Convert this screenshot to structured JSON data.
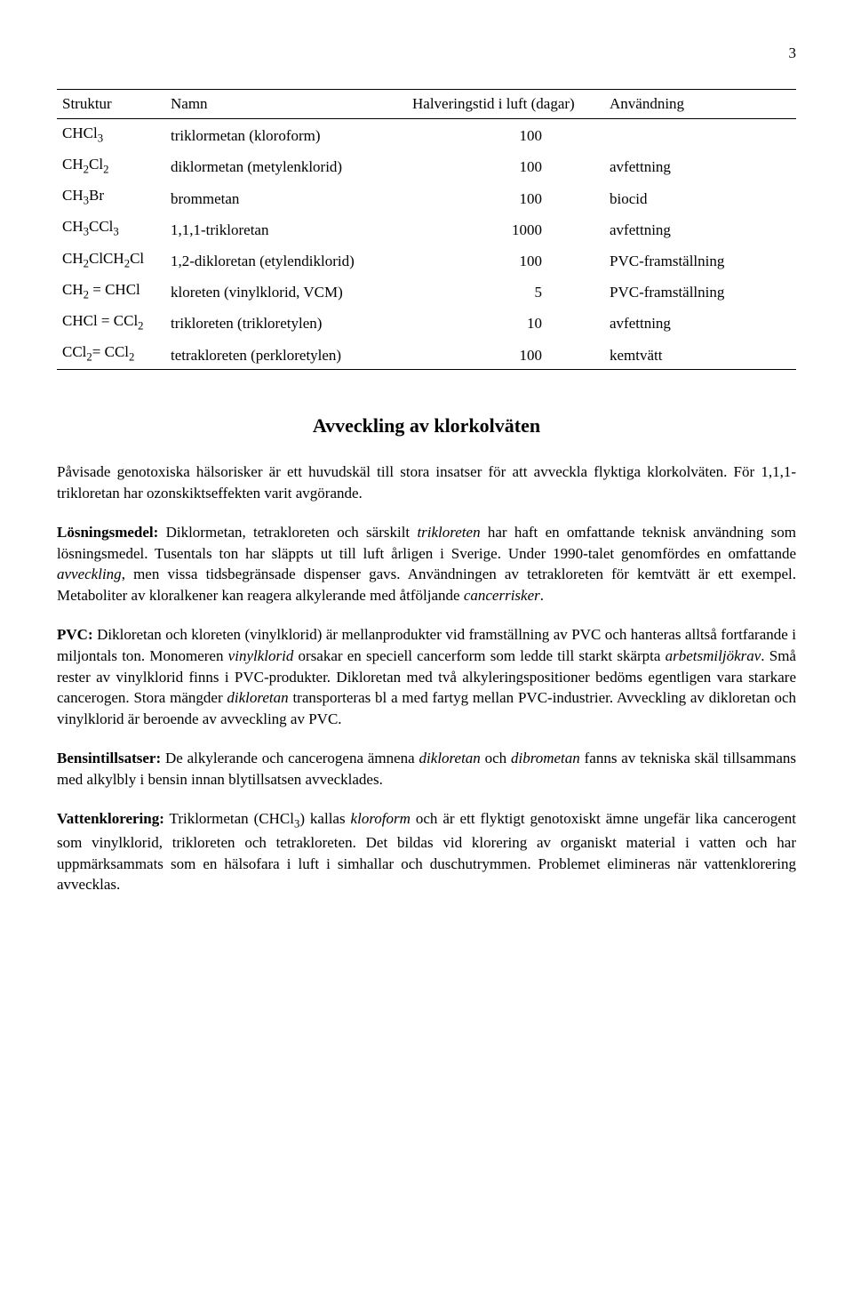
{
  "page_number": "3",
  "table": {
    "headers": [
      "Struktur",
      "Namn",
      "Halveringstid i luft (dagar)",
      "Användning"
    ],
    "rows": [
      {
        "struct_html": "CHCl<span class='sub'>3</span>",
        "name": "triklormetan (kloroform)",
        "half": "100",
        "use": ""
      },
      {
        "struct_html": "CH<span class='sub'>2</span>Cl<span class='sub'>2</span>",
        "name": "diklormetan (metylenklorid)",
        "half": "100",
        "use": "avfettning"
      },
      {
        "struct_html": "CH<span class='sub'>3</span>Br",
        "name": "brommetan",
        "half": "100",
        "use": "biocid"
      },
      {
        "struct_html": "CH<span class='sub'>3</span>CCl<span class='sub'>3</span>",
        "name": "1,1,1-trikloretan",
        "half": "1000",
        "use": "avfettning"
      },
      {
        "struct_html": "CH<span class='sub'>2</span>ClCH<span class='sub'>2</span>Cl",
        "name": "1,2-dikloretan (etylendiklorid)",
        "half": "100",
        "use": "PVC-framställning"
      },
      {
        "struct_html": "CH<span class='sub'>2</span> = CHCl",
        "name": "kloreten (vinylklorid, VCM)",
        "half": "5",
        "use": "PVC-framställning"
      },
      {
        "struct_html": "CHCl = CCl<span class='sub'>2</span>",
        "name": "trikloreten (trikloretylen)",
        "half": "10",
        "use": "avfettning"
      },
      {
        "struct_html": "CCl<span class='sub'>2</span>= CCl<span class='sub'>2</span>",
        "name": "tetrakloreten (perkloretylen)",
        "half": "100",
        "use": "kemtvätt"
      }
    ]
  },
  "section_title": "Avveckling av klorkolväten",
  "paragraphs": {
    "p1_html": "Påvisade genotoxiska hälsorisker är ett huvudskäl till stora insatser för att avveckla flyktiga klorkolväten. För 1,1,1-trikloretan har ozonskiktseffekten varit avgörande.",
    "p2_html": "<span class='lead'>Lösningsmedel:</span> Diklormetan, tetrakloreten och särskilt <span class='ital'>trikloreten</span> har haft en omfattande teknisk användning som lösningsmedel. Tusentals ton har släppts ut till luft årligen i Sverige. Under 1990-talet genomfördes en omfattande <span class='ital'>avveckling</span>, men vissa tidsbegränsade dispenser gavs. Användningen av tetrakloreten för kemtvätt är ett exempel. Metaboliter av kloralkener kan reagera alkylerande med åtföljande <span class='ital'>cancerrisker</span>.",
    "p3_html": "<span class='lead'>PVC:</span> Dikloretan och kloreten (vinylklorid) är mellanprodukter vid framställning av PVC och hanteras alltså fortfarande i miljontals ton. Monomeren <span class='ital'>vinylklorid</span> orsakar en speciell cancerform som ledde till starkt skärpta <span class='ital'>arbetsmiljökrav</span>. Små rester av vinylklorid finns i PVC-produkter. Dikloretan med två alkyleringspositioner bedöms egentligen vara starkare cancerogen. Stora mängder <span class='ital'>dikloretan</span> transporteras bl a med fartyg mellan PVC-industrier. Avveckling av dikloretan och vinylklorid är beroende av avveckling av PVC.",
    "p4_html": "<span class='lead'>Bensintillsatser:</span> De alkylerande och cancerogena ämnena <span class='ital'>dikloretan</span> och <span class='ital'>dibrometan</span> fanns av tekniska skäl tillsammans med alkylbly i bensin innan blytillsatsen avvecklades.",
    "p5_html": "<span class='lead'>Vattenklorering:</span> Triklormetan (CHCl<span class='sub'>3</span>) kallas <span class='ital'>kloroform</span> och är ett flyktigt genotoxiskt ämne ungefär lika cancerogent som vinylklorid, trikloreten och tetrakloreten. Det bildas vid klorering av organiskt material i vatten och har uppmärksammats som en hälsofara i luft i simhallar och duschutrymmen. Problemet elimineras när vattenklorering avvecklas."
  }
}
